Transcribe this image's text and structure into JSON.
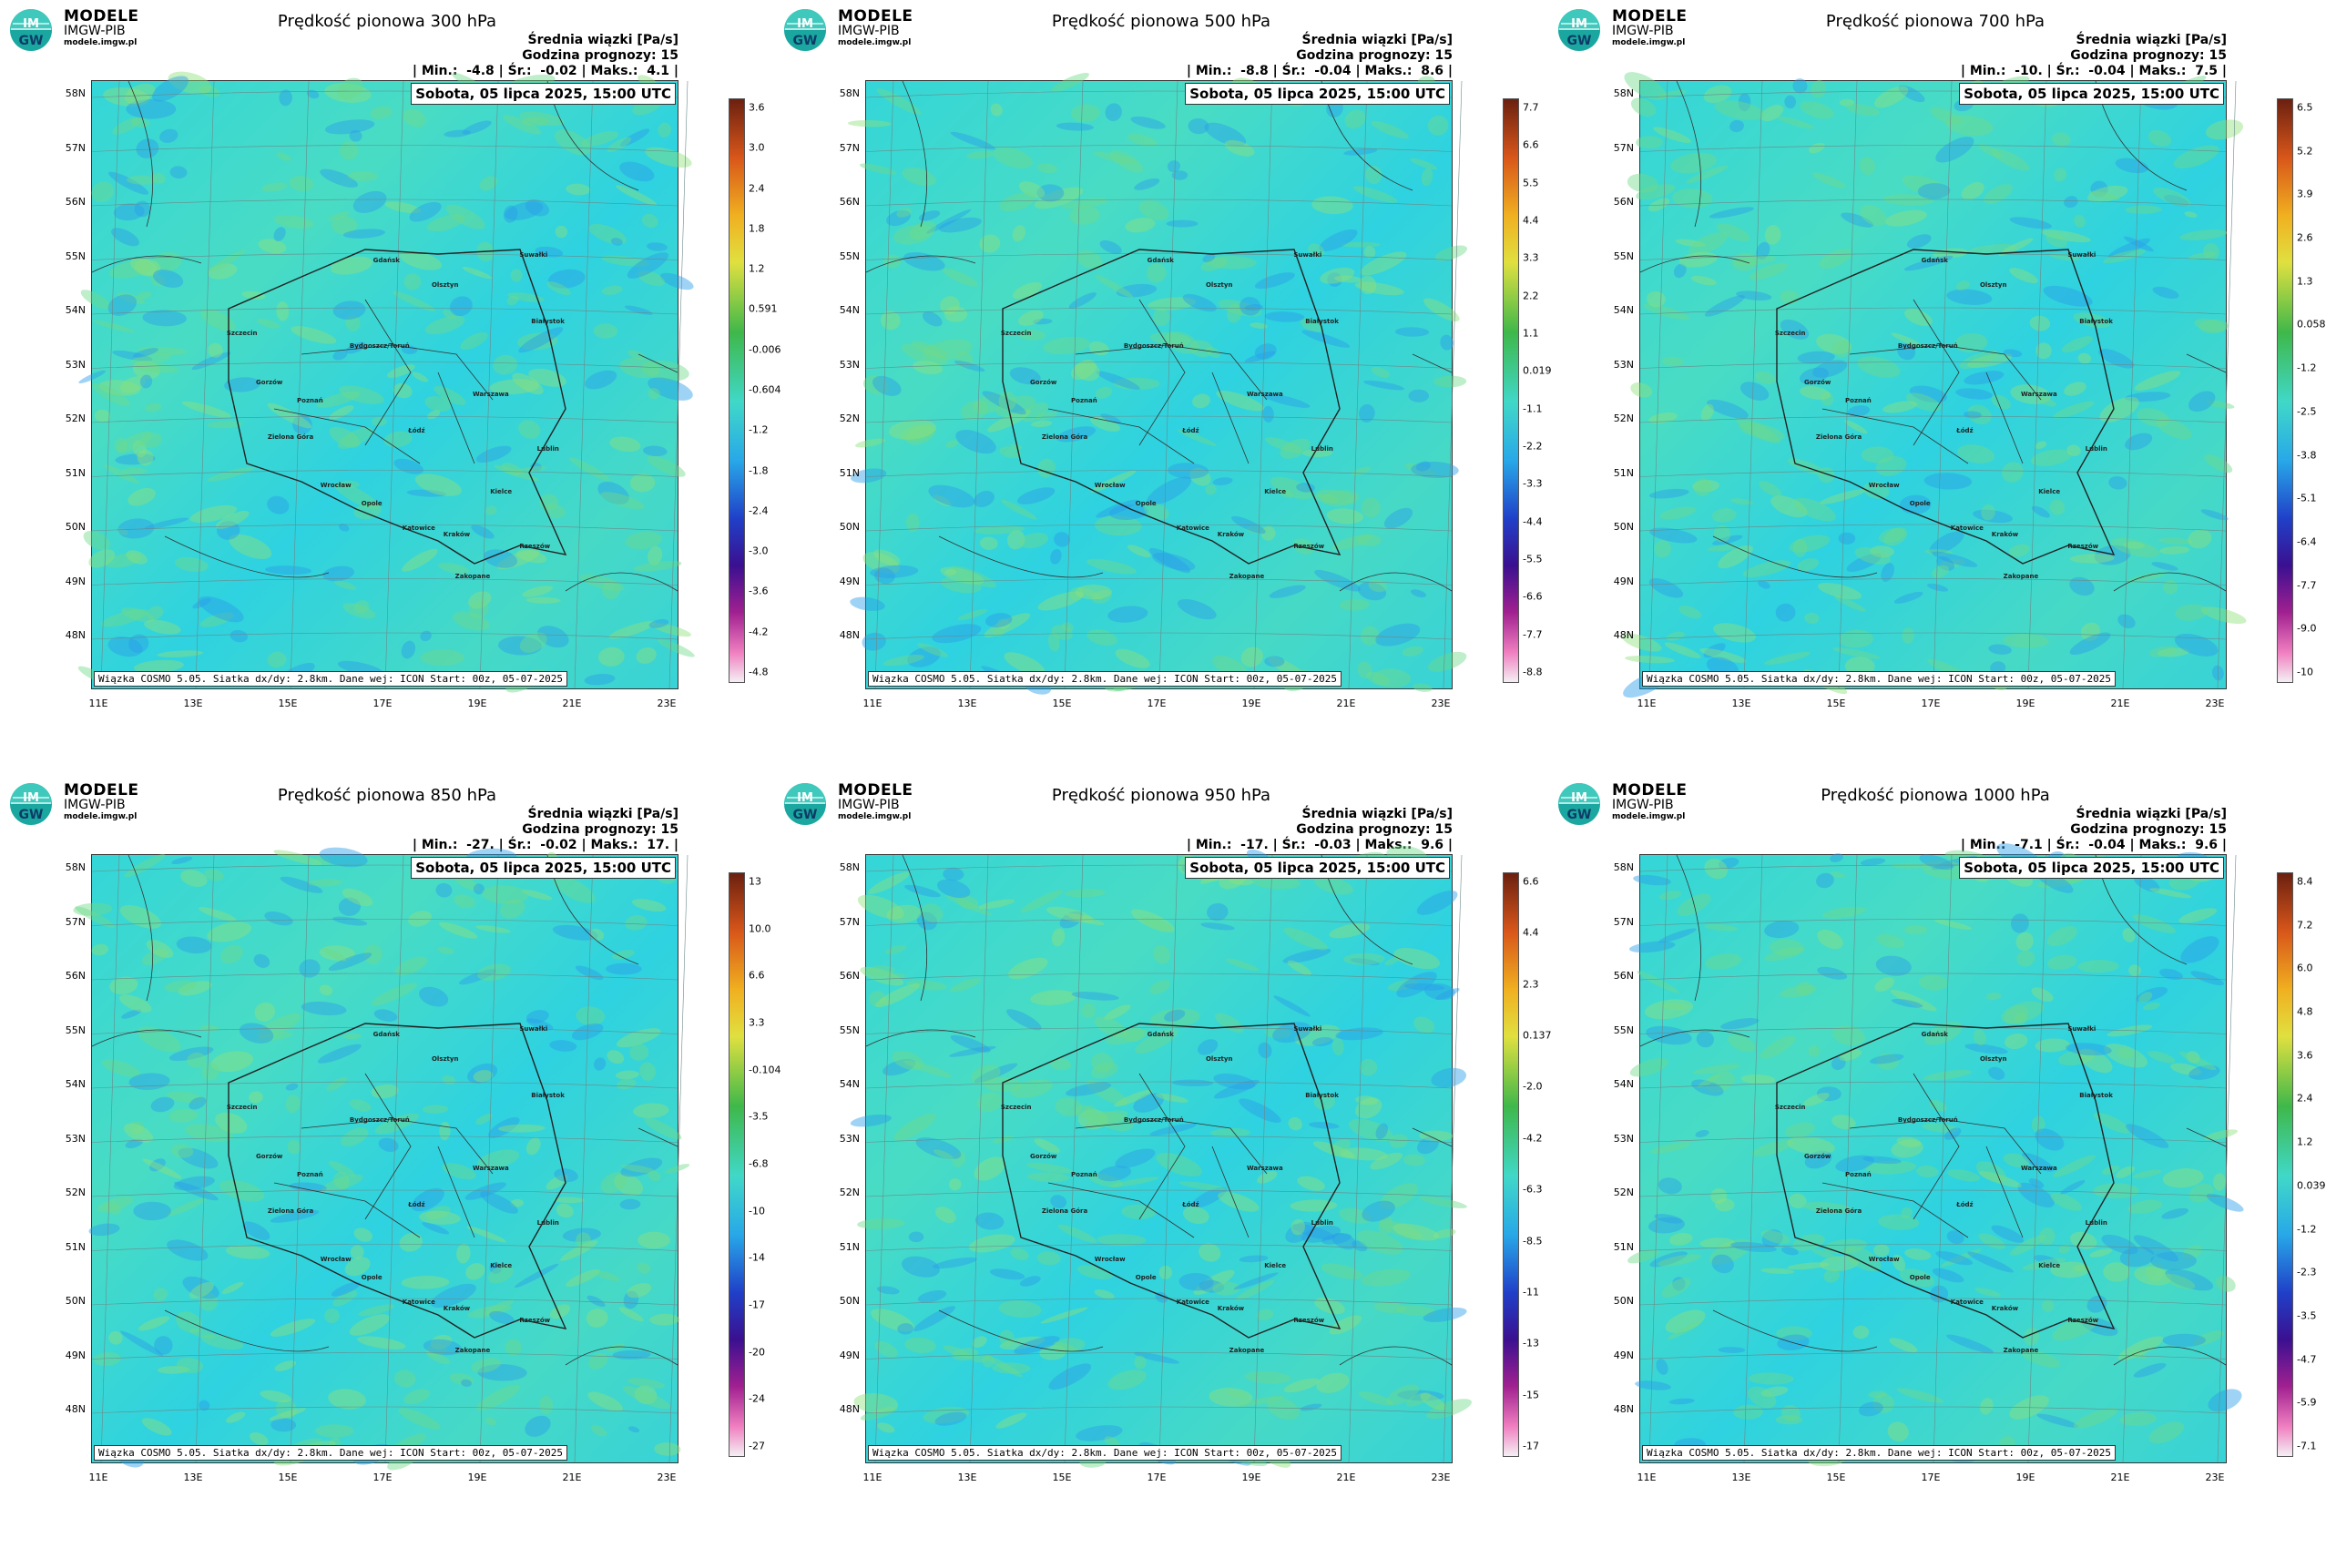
{
  "logo": {
    "line1": "MODELE",
    "line2": "IMGW-PIB",
    "line3": "modele.imgw.pl",
    "badge_top": "IM",
    "badge_bot": "GW"
  },
  "common": {
    "mean_label": "Średnia wiązki [Pa/s]",
    "forecast_hour": "Godzina prognozy: 15",
    "date": "Sobota, 05 lipca 2025, 15:00 UTC",
    "footer": "Wiązka COSMO 5.05. Siatka dx/dy: 2.8km. Dane wej: ICON Start: 00z, 05-07-2025",
    "lat_labels": [
      "58N",
      "57N",
      "56N",
      "55N",
      "54N",
      "53N",
      "52N",
      "51N",
      "50N",
      "49N",
      "48N"
    ],
    "lon_labels": [
      "11E",
      "13E",
      "15E",
      "17E",
      "19E",
      "21E",
      "23E"
    ],
    "cities": [
      "Gdańsk",
      "Olsztyn",
      "Suwałki",
      "Szczecin",
      "Bydgoszcz/Toruń",
      "Białystok",
      "Gorzów",
      "Poznań",
      "Warszawa",
      "Zielona Góra",
      "Łódź",
      "Lublin",
      "Wrocław",
      "Opole",
      "Kielce",
      "Katowice",
      "Kraków",
      "Rzeszów",
      "Zakopane"
    ]
  },
  "panels": [
    {
      "title": "Prędkość pionowa 300 hPa",
      "min": "-4.8",
      "mean": "-0.02",
      "max": "4.1",
      "cbar": [
        "3.6",
        "3.0",
        "2.4",
        "1.8",
        "1.2",
        "0.591",
        "-0.006",
        "-0.604",
        "-1.2",
        "-1.8",
        "-2.4",
        "-3.0",
        "-3.6",
        "-4.2",
        "-4.8"
      ]
    },
    {
      "title": "Prędkość pionowa 500 hPa",
      "min": "-8.8",
      "mean": "-0.04",
      "max": "8.6",
      "cbar": [
        "7.7",
        "6.6",
        "5.5",
        "4.4",
        "3.3",
        "2.2",
        "1.1",
        "0.019",
        "-1.1",
        "-2.2",
        "-3.3",
        "-4.4",
        "-5.5",
        "-6.6",
        "-7.7",
        "-8.8"
      ]
    },
    {
      "title": "Prędkość pionowa 700 hPa",
      "min": "-10.",
      "mean": "-0.04",
      "max": "7.5",
      "cbar": [
        "6.5",
        "5.2",
        "3.9",
        "2.6",
        "1.3",
        "0.058",
        "-1.2",
        "-2.5",
        "-3.8",
        "-5.1",
        "-6.4",
        "-7.7",
        "-9.0",
        "-10"
      ]
    },
    {
      "title": "Prędkość pionowa 850 hPa",
      "min": "-27.",
      "mean": "-0.02",
      "max": "17.",
      "cbar": [
        "13",
        "10.0",
        "6.6",
        "3.3",
        "-0.104",
        "-3.5",
        "-6.8",
        "-10",
        "-14",
        "-17",
        "-20",
        "-24",
        "-27"
      ]
    },
    {
      "title": "Prędkość pionowa 950 hPa",
      "min": "-17.",
      "mean": "-0.03",
      "max": "9.6",
      "cbar": [
        "6.6",
        "4.4",
        "2.3",
        "0.137",
        "-2.0",
        "-4.2",
        "-6.3",
        "-8.5",
        "-11",
        "-13",
        "-15",
        "-17"
      ]
    },
    {
      "title": "Prędkość pionowa 1000 hPa",
      "min": "-7.1",
      "mean": "-0.04",
      "max": "9.6",
      "cbar": [
        "8.4",
        "7.2",
        "6.0",
        "4.8",
        "3.6",
        "2.4",
        "1.2",
        "0.039",
        "-1.2",
        "-2.3",
        "-3.5",
        "-4.7",
        "-5.9",
        "-7.1"
      ]
    }
  ]
}
